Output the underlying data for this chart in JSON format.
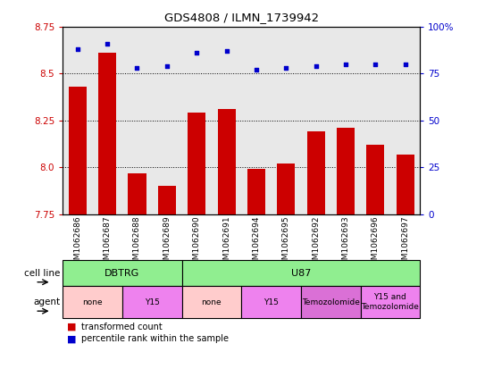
{
  "title": "GDS4808 / ILMN_1739942",
  "samples": [
    "GSM1062686",
    "GSM1062687",
    "GSM1062688",
    "GSM1062689",
    "GSM1062690",
    "GSM1062691",
    "GSM1062694",
    "GSM1062695",
    "GSM1062692",
    "GSM1062693",
    "GSM1062696",
    "GSM1062697"
  ],
  "bar_values": [
    8.43,
    8.61,
    7.97,
    7.9,
    8.29,
    8.31,
    7.99,
    8.02,
    8.19,
    8.21,
    8.12,
    8.07
  ],
  "percentile_values": [
    88,
    91,
    78,
    79,
    86,
    87,
    77,
    78,
    79,
    80,
    80,
    80
  ],
  "ylim_left": [
    7.75,
    8.75
  ],
  "ylim_right": [
    0,
    100
  ],
  "yticks_left": [
    7.75,
    8.0,
    8.25,
    8.5,
    8.75
  ],
  "yticks_right": [
    0,
    25,
    50,
    75,
    100
  ],
  "bar_color": "#cc0000",
  "dot_color": "#0000cc",
  "bar_bottom": 7.75,
  "cell_line_groups": [
    {
      "label": "DBTRG",
      "start": 0,
      "end": 3,
      "color": "#90ee90"
    },
    {
      "label": "U87",
      "start": 4,
      "end": 11,
      "color": "#90ee90"
    }
  ],
  "agent_groups": [
    {
      "label": "none",
      "start": 0,
      "end": 1,
      "color": "#ffcccc"
    },
    {
      "label": "Y15",
      "start": 2,
      "end": 3,
      "color": "#ee82ee"
    },
    {
      "label": "none",
      "start": 4,
      "end": 5,
      "color": "#ffcccc"
    },
    {
      "label": "Y15",
      "start": 6,
      "end": 7,
      "color": "#ee82ee"
    },
    {
      "label": "Temozolomide",
      "start": 8,
      "end": 9,
      "color": "#da70d6"
    },
    {
      "label": "Y15 and\nTemozolomide",
      "start": 10,
      "end": 11,
      "color": "#ee82ee"
    }
  ],
  "legend_transformed": "transformed count",
  "legend_percentile": "percentile rank within the sample",
  "cell_line_label": "cell line",
  "agent_label": "agent",
  "plot_bg_color": "#e8e8e8"
}
